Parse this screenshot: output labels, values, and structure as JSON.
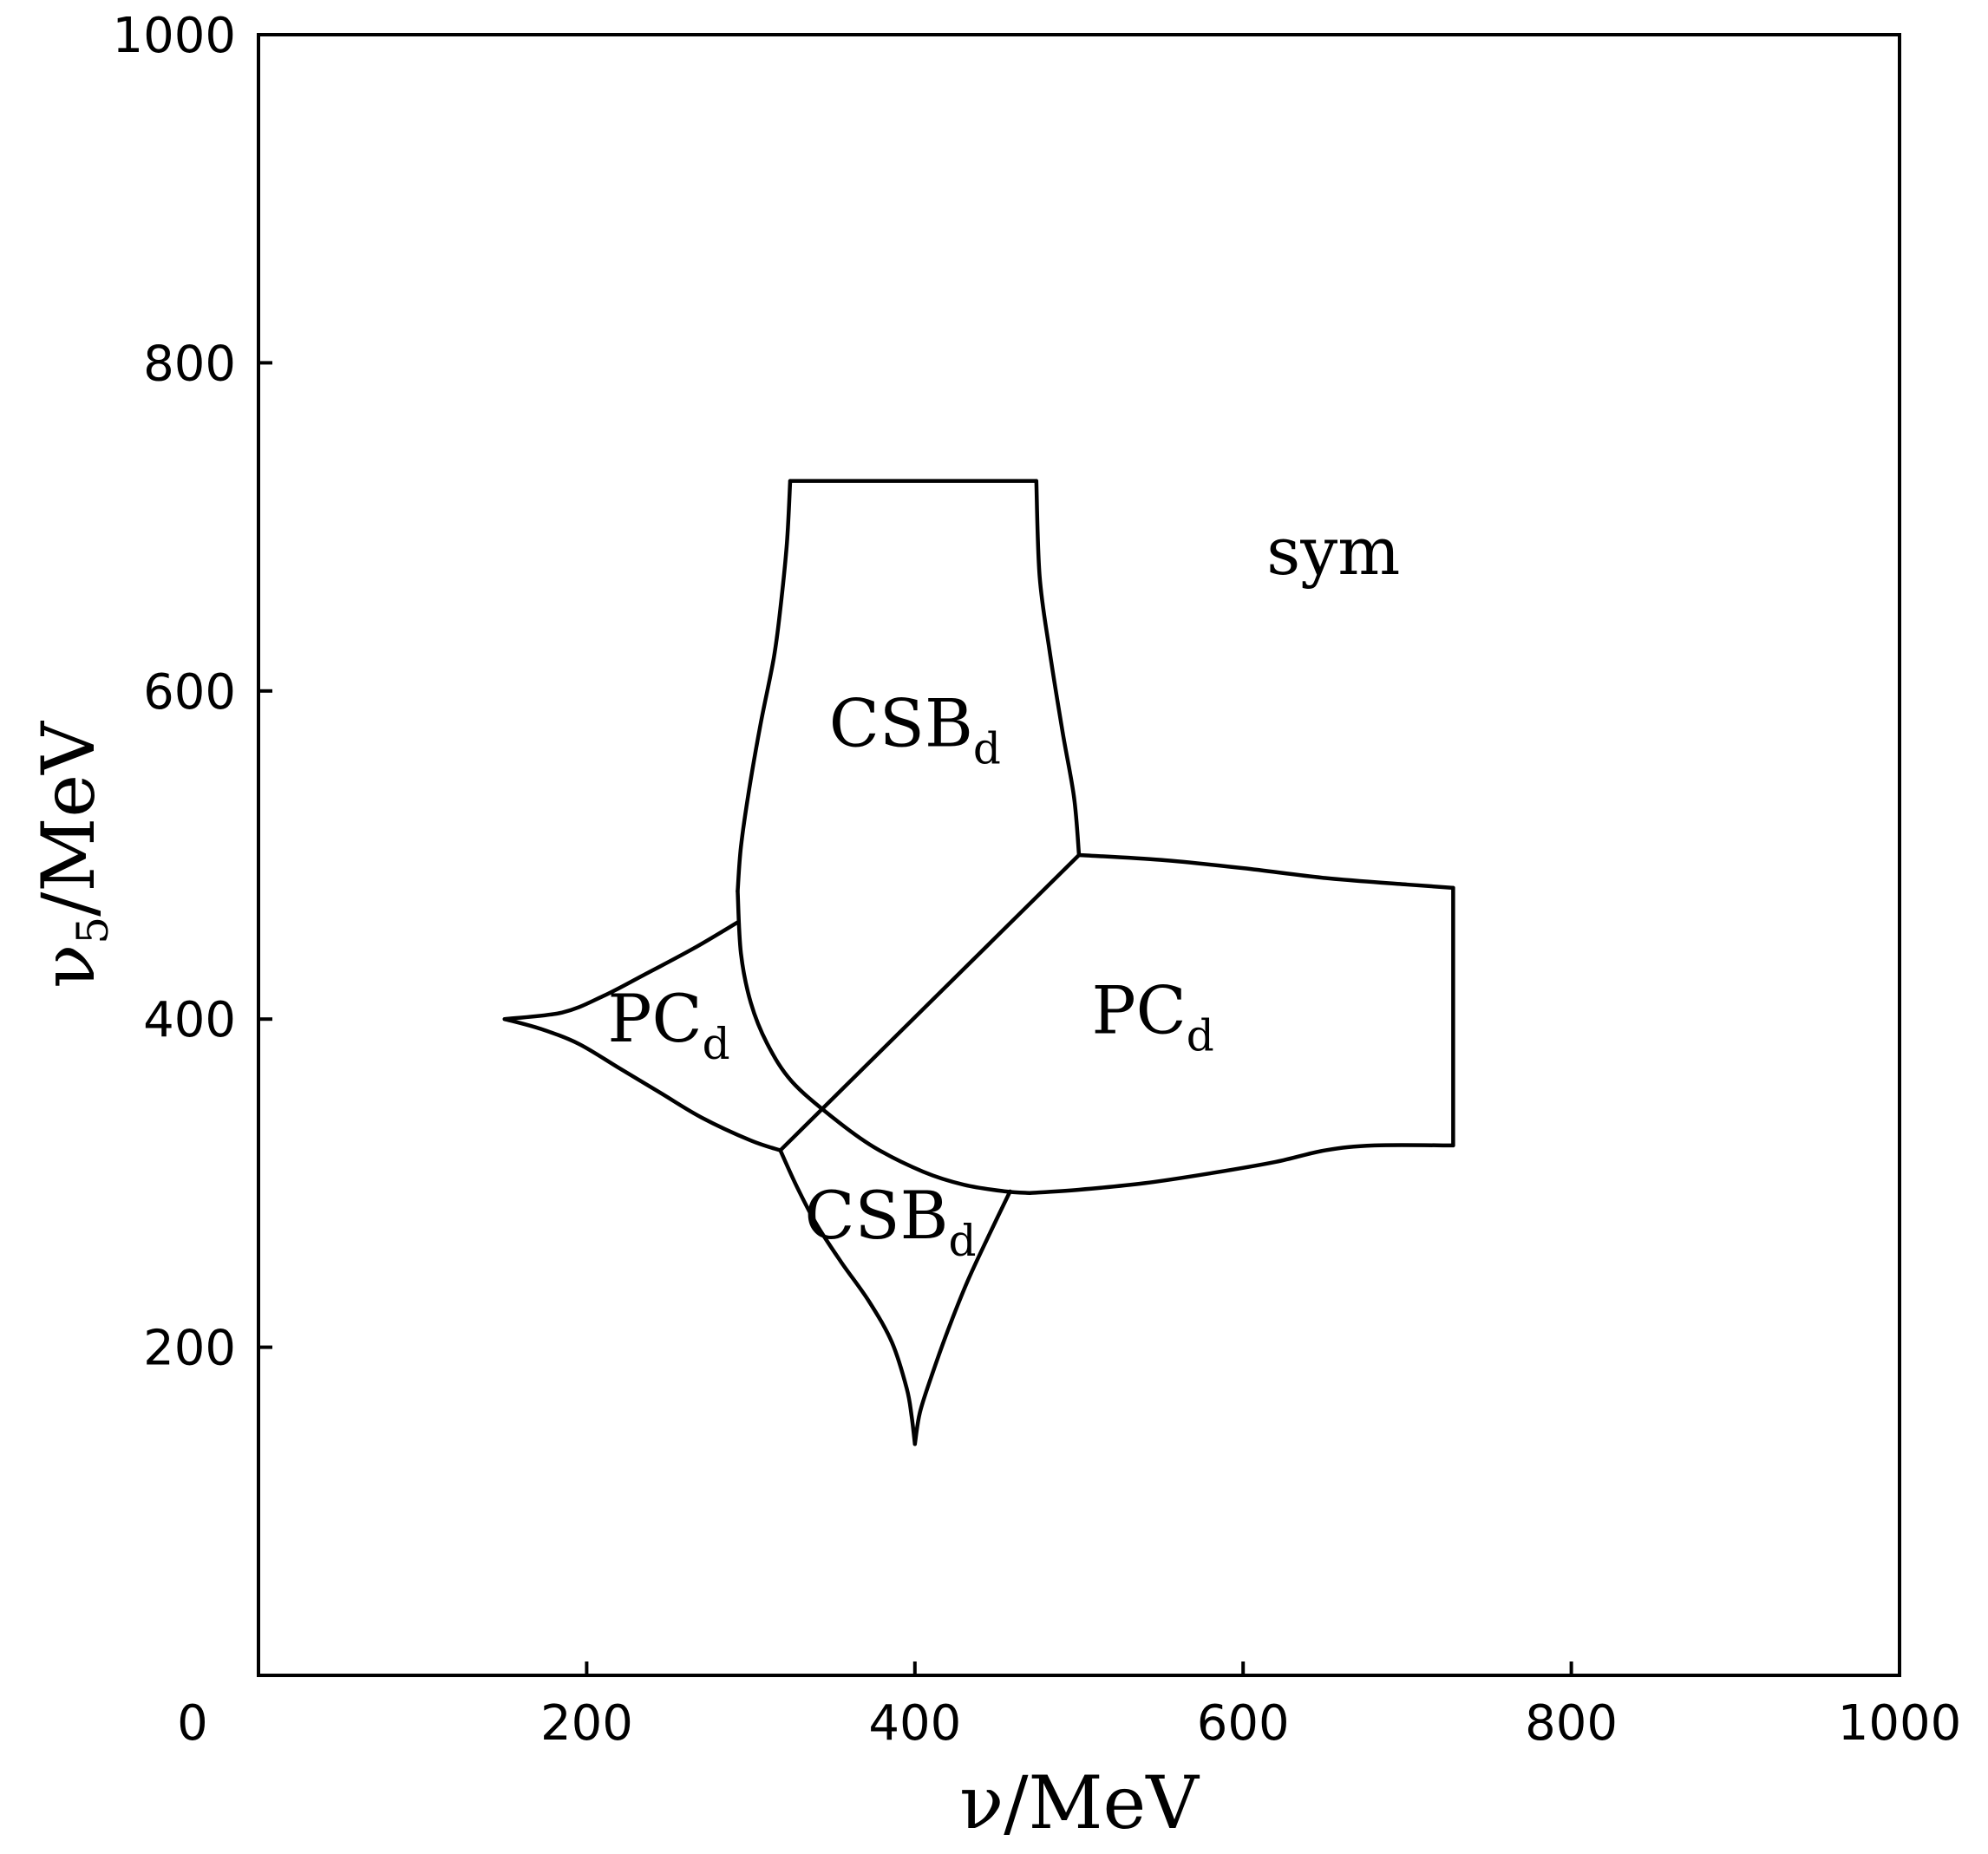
{
  "chart_data": {
    "type": "line",
    "title": "",
    "xlabel": "ν/MeV",
    "ylabel_main": "ν",
    "ylabel_sub": "5",
    "ylabel_rest": "/MeV",
    "xlim": [
      0,
      1000
    ],
    "ylim": [
      0,
      1000
    ],
    "grid": false,
    "legend": "none",
    "x_ticks": [
      {
        "value": 0,
        "label": "0"
      },
      {
        "value": 200,
        "label": "200"
      },
      {
        "value": 400,
        "label": "400"
      },
      {
        "value": 600,
        "label": "600"
      },
      {
        "value": 800,
        "label": "800"
      },
      {
        "value": 1000,
        "label": "1000"
      }
    ],
    "y_ticks": [
      {
        "value": 200,
        "label": "200"
      },
      {
        "value": 400,
        "label": "400"
      },
      {
        "value": 600,
        "label": "600"
      },
      {
        "value": 800,
        "label": "800"
      },
      {
        "value": 1000,
        "label": "1000"
      }
    ],
    "regions": [
      {
        "label": "CSB",
        "sub": "d",
        "x": 400,
        "y": 580
      },
      {
        "label": "PC",
        "sub": "d",
        "x": 250,
        "y": 400
      },
      {
        "label": "PC",
        "sub": "d",
        "x": 545,
        "y": 405
      },
      {
        "label": "CSB",
        "sub": "d",
        "x": 385,
        "y": 280
      },
      {
        "label": "sym",
        "sub": "",
        "x": 655,
        "y": 685
      }
    ],
    "boundaries": [
      {
        "name": "csb-upper-top",
        "points": [
          [
            324,
            728
          ],
          [
            474,
            728
          ]
        ]
      },
      {
        "name": "csb-upper-right",
        "points": [
          [
            474,
            728
          ],
          [
            476,
            670
          ],
          [
            482,
            625
          ],
          [
            490,
            575
          ],
          [
            497,
            535
          ],
          [
            500,
            500
          ]
        ]
      },
      {
        "name": "csb-upper-left",
        "points": [
          [
            324,
            728
          ],
          [
            322,
            690
          ],
          [
            318,
            650
          ],
          [
            314,
            620
          ],
          [
            306,
            580
          ],
          [
            299,
            540
          ],
          [
            294,
            505
          ],
          [
            292,
            478
          ]
        ]
      },
      {
        "name": "csb-upper-curve-lower",
        "points": [
          [
            292,
            478
          ],
          [
            294,
            440
          ],
          [
            300,
            410
          ],
          [
            310,
            385
          ],
          [
            325,
            362
          ],
          [
            350,
            340
          ],
          [
            375,
            322
          ],
          [
            405,
            307
          ],
          [
            430,
            299
          ],
          [
            455,
            295
          ],
          [
            470,
            294
          ]
        ]
      },
      {
        "name": "pc-left-upper",
        "points": [
          [
            292,
            459
          ],
          [
            265,
            443
          ],
          [
            235,
            427
          ],
          [
            210,
            414
          ],
          [
            185,
            404
          ],
          [
            150,
            400
          ]
        ]
      },
      {
        "name": "pc-left-lower",
        "points": [
          [
            150,
            400
          ],
          [
            172,
            394
          ],
          [
            195,
            385
          ],
          [
            220,
            370
          ],
          [
            245,
            355
          ],
          [
            270,
            340
          ],
          [
            300,
            326
          ],
          [
            318,
            320
          ]
        ]
      },
      {
        "name": "diagonal",
        "points": [
          [
            318,
            320
          ],
          [
            500,
            500
          ]
        ]
      },
      {
        "name": "pc-right-top",
        "points": [
          [
            500,
            500
          ],
          [
            550,
            497
          ],
          [
            600,
            492
          ],
          [
            650,
            486
          ],
          [
            700,
            482
          ],
          [
            728,
            480
          ]
        ]
      },
      {
        "name": "pc-right-right",
        "points": [
          [
            728,
            480
          ],
          [
            728,
            323
          ]
        ]
      },
      {
        "name": "pc-right-bottom",
        "points": [
          [
            728,
            323
          ],
          [
            680,
            323
          ],
          [
            650,
            320
          ],
          [
            620,
            313
          ],
          [
            580,
            306
          ],
          [
            540,
            300
          ],
          [
            500,
            296
          ],
          [
            470,
            294
          ]
        ]
      },
      {
        "name": "csb-lower-left",
        "points": [
          [
            318,
            320
          ],
          [
            328,
            298
          ],
          [
            340,
            275
          ],
          [
            355,
            252
          ],
          [
            372,
            228
          ],
          [
            386,
            203
          ],
          [
            395,
            175
          ],
          [
            398,
            158
          ],
          [
            400,
            141
          ]
        ]
      },
      {
        "name": "csb-lower-right",
        "points": [
          [
            400,
            141
          ],
          [
            403,
            160
          ],
          [
            410,
            182
          ],
          [
            420,
            210
          ],
          [
            432,
            240
          ],
          [
            445,
            268
          ],
          [
            458,
            295
          ]
        ]
      }
    ]
  }
}
